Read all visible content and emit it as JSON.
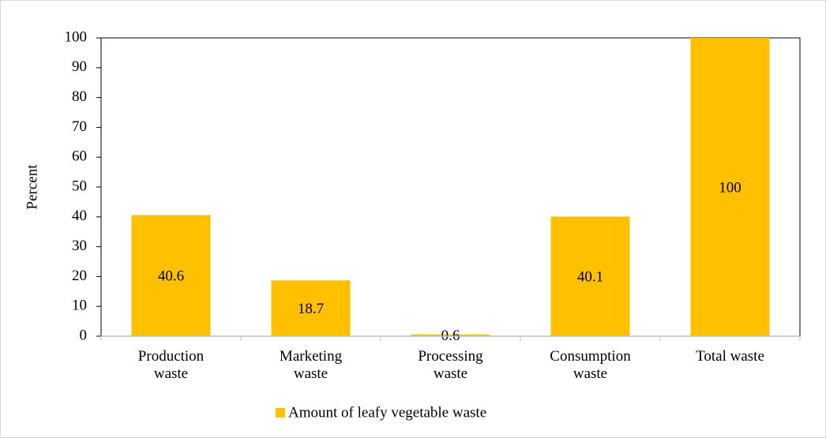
{
  "chart_data": {
    "type": "bar",
    "y_label": "Percent",
    "categories": [
      "Production waste",
      "Marketing waste",
      "Processing waste",
      "Consumption waste",
      "Total waste"
    ],
    "series": [
      {
        "name": "Amount of leafy vegetable waste",
        "color": "#ffc000",
        "values": [
          40.6,
          18.7,
          0.6,
          40.1,
          100
        ]
      }
    ],
    "ylim": [
      0,
      100
    ],
    "yticks": [
      0,
      10,
      20,
      30,
      40,
      50,
      60,
      70,
      80,
      90,
      100
    ],
    "legend": "bottom"
  }
}
